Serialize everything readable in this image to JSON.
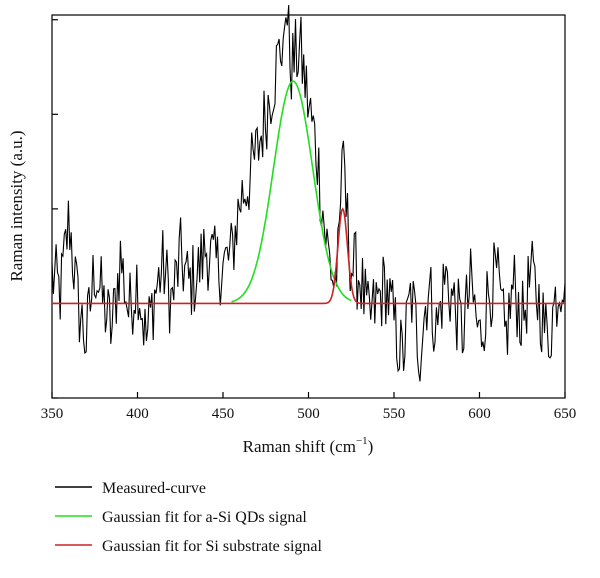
{
  "chart_data": {
    "type": "line",
    "title": "",
    "xlabel": "Raman shift (cm",
    "xlabel_sup": "−1",
    "xlabel_close": ")",
    "ylabel": "Raman intensity (a.u.)",
    "xlim": [
      350,
      650
    ],
    "ylim": [
      -1,
      3.05
    ],
    "xticks": [
      "350",
      "400",
      "450",
      "500",
      "550",
      "600",
      "650"
    ],
    "yticks": [
      -1,
      0,
      1,
      2,
      3
    ],
    "grid": false,
    "legend_position": "bottom",
    "series": [
      {
        "name": "Measured-curve",
        "color": "#000000",
        "x": [
          350,
          355,
          360,
          365,
          370,
          375,
          380,
          385,
          390,
          395,
          400,
          405,
          410,
          415,
          420,
          425,
          430,
          435,
          440,
          445,
          450,
          455,
          460,
          465,
          470,
          475,
          480,
          485,
          487,
          490,
          495,
          500,
          505,
          510,
          515,
          518,
          520,
          522,
          525,
          530,
          535,
          540,
          545,
          550,
          555,
          560,
          565,
          570,
          575,
          580,
          585,
          590,
          595,
          600,
          605,
          610,
          615,
          620,
          625,
          630,
          635,
          640,
          645,
          650
        ],
        "y": [
          0.3,
          0.1,
          0.9,
          0.0,
          -0.4,
          0.4,
          0.0,
          -0.3,
          0.5,
          -0.1,
          0.3,
          -0.4,
          0.1,
          0.4,
          0.0,
          0.5,
          0.2,
          0.3,
          0.6,
          0.4,
          0.4,
          0.5,
          1.1,
          1.3,
          1.6,
          2.0,
          2.4,
          2.8,
          3.05,
          2.5,
          2.7,
          2.1,
          1.6,
          0.7,
          0.2,
          0.5,
          1.9,
          1.0,
          0.4,
          0.3,
          -0.2,
          0.0,
          0.2,
          -0.2,
          -0.6,
          0.1,
          -0.5,
          0.2,
          -0.3,
          0.3,
          0.0,
          -0.3,
          0.2,
          -0.4,
          0.1,
          0.3,
          -0.4,
          0.2,
          -0.2,
          0.3,
          0.0,
          -0.4,
          0.1,
          0.4
        ]
      },
      {
        "name": "Gaussian fit for a-Si QDs signal",
        "color": "#22dd22",
        "gaussian": {
          "center": 491,
          "sigma": 11.5,
          "amplitude": 2.35,
          "baseline": 0,
          "range": [
            455,
            525
          ]
        }
      },
      {
        "name": "Gaussian fit for Si substrate signal",
        "color": "#cc2222",
        "gaussian": {
          "center": 520,
          "sigma": 2.8,
          "amplitude": 1.0,
          "baseline": 0,
          "range": [
            350,
            650
          ]
        }
      }
    ]
  }
}
